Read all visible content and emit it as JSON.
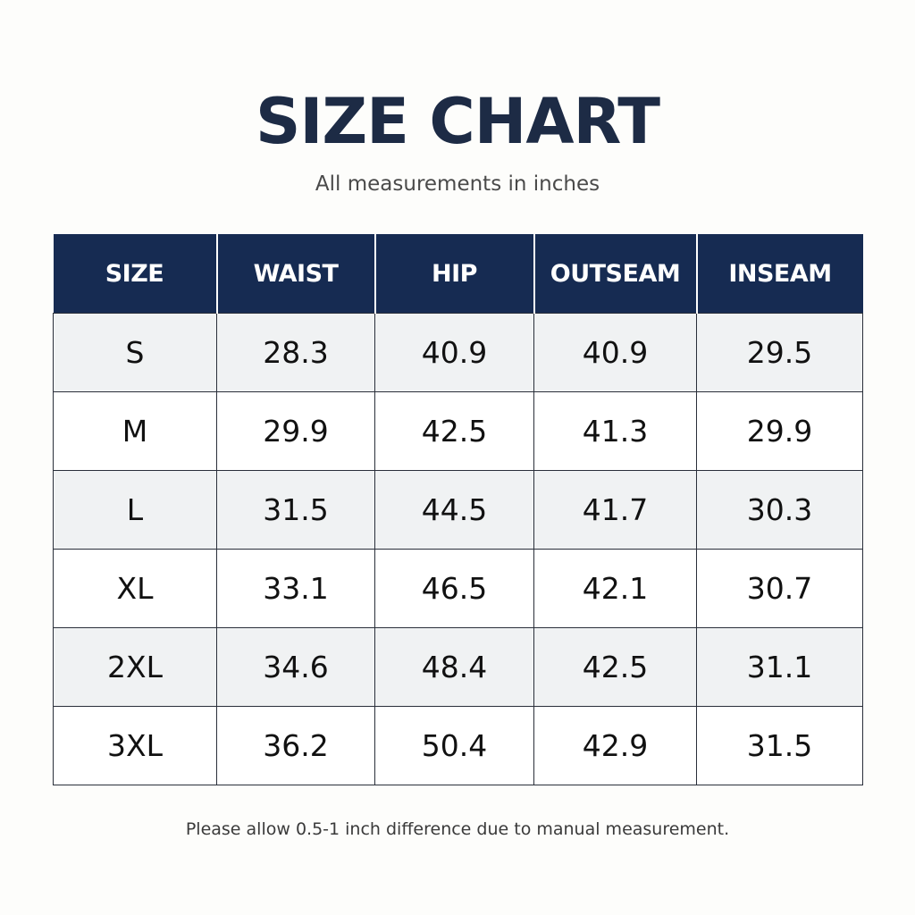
{
  "title": "SIZE CHART",
  "subtitle": "All measurements in inches",
  "table": {
    "headers": [
      "SIZE",
      "WAIST",
      "HIP",
      "OUTSEAM",
      "INSEAM"
    ],
    "rows": [
      [
        "S",
        "28.3",
        "40.9",
        "40.9",
        "29.5"
      ],
      [
        "M",
        "29.9",
        "42.5",
        "41.3",
        "29.9"
      ],
      [
        "L",
        "31.5",
        "44.5",
        "41.7",
        "30.3"
      ],
      [
        "XL",
        "33.1",
        "46.5",
        "42.1",
        "30.7"
      ],
      [
        "2XL",
        "34.6",
        "48.4",
        "42.5",
        "31.1"
      ],
      [
        "3XL",
        "36.2",
        "50.4",
        "42.9",
        "31.5"
      ]
    ]
  },
  "note": "Please allow 0.5-1 inch difference due to manual measurement.",
  "colors": {
    "header_bg": "#162b52",
    "title": "#1d2b45",
    "shaded_row": "#f0f2f3"
  }
}
